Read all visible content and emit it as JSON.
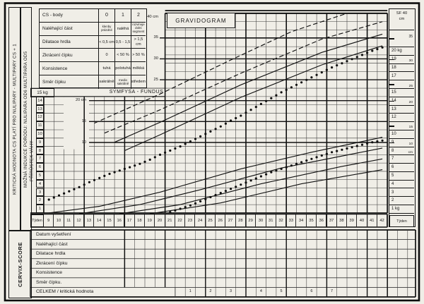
{
  "title": "GRAVIDOGRAM",
  "side_notes": {
    "critical": "KRITICKÁ HODNOTA CS PLATÍ PRO NULIPARY - MULTIPARY CS + 1",
    "induction": "MOŽNÁ INDUKCE PORODU: NULIPARA OD6 MULTIPARA OD5",
    "cervix_score": "CERVIX-SCORE"
  },
  "cs_table": {
    "header": [
      "CS - body",
      "0",
      "1",
      "2"
    ],
    "rows": [
      [
        "Naléhající část",
        "klenby\nprázdné",
        "naléhá",
        "rozvinuje\ndolní\nsegment"
      ],
      [
        "Dilatace hrdla",
        "< 0,5 cm",
        "0,5 - 1,5",
        "> 1,5 cm"
      ],
      [
        "Zkrácení čípku",
        "0",
        "< 50 %",
        "> 50 %"
      ],
      [
        "Konsistence",
        "tuhá",
        "polotuhá",
        "měkká"
      ],
      [
        "Směr čípku",
        "sakrálně",
        "medio\nsakrálně",
        "středem"
      ]
    ]
  },
  "axes": {
    "week_label": "Týden",
    "weeks": [
      9,
      10,
      11,
      12,
      13,
      14,
      15,
      16,
      17,
      18,
      19,
      20,
      21,
      22,
      23,
      24,
      25,
      26,
      27,
      28,
      29,
      30,
      31,
      32,
      33,
      34,
      35,
      36,
      37,
      38,
      39,
      40,
      41,
      42
    ],
    "weight_axis_label": "PŘÍRŮSTEK VÁHY",
    "sf_header": "SYMFYSA - FUNDUS",
    "kg15_label": "15 kg",
    "left_kg_labels": [
      14,
      13,
      12,
      11,
      10,
      9,
      8,
      7,
      6,
      5,
      4,
      3,
      2,
      1
    ],
    "left_sf_labels": [
      {
        "text": "40 cm",
        "cm": 40
      },
      {
        "text": "35",
        "cm": 35
      },
      {
        "text": "30",
        "cm": 30
      },
      {
        "text": "25",
        "cm": 25
      }
    ],
    "inner_sf_labels": [
      {
        "text": "20 cm",
        "cm": 20
      },
      {
        "text": "15",
        "cm": 15
      },
      {
        "text": "10",
        "cm": 10
      }
    ],
    "right_scale": {
      "header": "SF 40\ncm",
      "pre_tick": "35",
      "rows": [
        [
          "20 kg",
          ""
        ],
        [
          "19",
          "30"
        ],
        [
          "18",
          ""
        ],
        [
          "17",
          ""
        ],
        [
          "",
          "25"
        ],
        [
          "15",
          ""
        ],
        [
          "14",
          "20"
        ],
        [
          "13",
          ""
        ],
        [
          "12",
          ""
        ],
        [
          "",
          "15"
        ],
        [
          "10",
          ""
        ],
        [
          "9",
          "10"
        ],
        [
          "8",
          "cm"
        ],
        [
          "7",
          ""
        ],
        [
          "6",
          ""
        ],
        [
          "5",
          ""
        ],
        [
          "4",
          ""
        ],
        [
          "3",
          ""
        ],
        [
          "2",
          ""
        ],
        [
          "1 kg",
          ""
        ]
      ],
      "week_label": "Týden"
    }
  },
  "chart_data": {
    "type": "scatter",
    "title": "GRAVIDOGRAM",
    "xlabel": "Týden",
    "x_range": [
      9,
      42
    ],
    "grid": true,
    "y_axes": {
      "prirustek_vahy_kg": {
        "range": [
          1,
          20
        ],
        "label": "PŘÍRŮSTEK VÁHY (kg)"
      },
      "symfysa_fundus_cm": {
        "range": [
          10,
          40
        ],
        "label": "SYMFYSA - FUNDUS (cm)"
      }
    },
    "series": [
      {
        "name": "dotted-series-upper",
        "style": "dots",
        "unit": "kg-grid",
        "x_start": 9,
        "values": [
          2.1,
          2.6,
          3.1,
          3.6,
          4.2,
          4.7,
          5.2,
          5.6,
          6.0,
          6.4,
          6.9,
          7.5,
          8.0,
          8.5,
          9.1,
          9.7,
          10.3,
          10.9,
          11.6,
          12.2,
          12.9,
          13.6,
          14.3,
          15.0,
          15.6,
          16.2,
          16.8,
          17.4,
          18.0,
          18.5,
          19.0,
          19.5,
          20.0,
          20.4
        ]
      },
      {
        "name": "dotted-series-lower",
        "style": "dots",
        "unit": "kg-grid",
        "x_start": 21,
        "values": [
          0.6,
          1.0,
          1.4,
          1.9,
          2.4,
          2.9,
          3.4,
          3.9,
          4.4,
          4.9,
          5.4,
          5.8,
          6.2,
          6.6,
          7.0,
          7.4,
          7.8,
          8.1,
          8.4,
          8.7,
          9.0,
          9.2
        ]
      }
    ],
    "reference_lines": [
      {
        "name": "sf-percentile-1",
        "style": "dashed",
        "points": [
          [
            13.5,
            11.3
          ],
          [
            20,
            14.8
          ],
          [
            27,
            18.9
          ],
          [
            33,
            22.3
          ],
          [
            38.5,
            24.5
          ]
        ]
      },
      {
        "name": "sf-percentile-2",
        "style": "dashed",
        "points": [
          [
            14.5,
            10.1
          ],
          [
            20,
            12.9
          ],
          [
            28,
            17.3
          ],
          [
            36,
            21.4
          ],
          [
            42,
            23.5
          ]
        ]
      },
      {
        "name": "sf-percentile-3",
        "style": "solid",
        "points": [
          [
            15.5,
            9.0
          ],
          [
            20,
            11.4
          ],
          [
            28,
            15.9
          ],
          [
            36,
            19.8
          ],
          [
            42,
            22.0
          ]
        ]
      },
      {
        "name": "sf-percentile-4",
        "style": "solid",
        "points": [
          [
            16.5,
            8.0
          ],
          [
            20,
            9.9
          ],
          [
            28,
            14.4
          ],
          [
            36,
            18.3
          ],
          [
            42,
            20.6
          ]
        ]
      },
      {
        "name": "weight-percentile-1",
        "style": "solid",
        "points": [
          [
            9,
            0.5
          ],
          [
            14,
            1.3
          ],
          [
            20,
            3.0
          ],
          [
            28,
            5.8
          ],
          [
            35,
            7.8
          ],
          [
            42,
            9.6
          ]
        ]
      },
      {
        "name": "weight-percentile-2",
        "style": "solid",
        "points": [
          [
            12,
            0.4
          ],
          [
            18,
            1.5
          ],
          [
            24,
            3.3
          ],
          [
            32,
            5.9
          ],
          [
            42,
            8.3
          ]
        ]
      },
      {
        "name": "weight-percentile-3",
        "style": "solid",
        "points": [
          [
            16,
            0.4
          ],
          [
            22,
            1.5
          ],
          [
            30,
            4.0
          ],
          [
            38,
            6.1
          ],
          [
            42,
            7.0
          ]
        ]
      },
      {
        "name": "weight-percentile-4",
        "style": "solid",
        "points": [
          [
            19,
            0.4
          ],
          [
            26,
            1.7
          ],
          [
            34,
            4.0
          ],
          [
            42,
            5.7
          ]
        ]
      }
    ]
  },
  "score_table": {
    "rows": [
      "Datum vyšetření",
      "Naléhající část",
      "Dilatace hrdla",
      "Zkrácení čípku",
      "Konsistence",
      "Směr čípku.",
      "CELKEM / kritická hodnota"
    ],
    "totals": {
      "weeks": [
        23,
        25,
        27,
        30,
        32,
        35,
        37
      ],
      "values": [
        1,
        2,
        3,
        4,
        5,
        6,
        7
      ]
    }
  }
}
